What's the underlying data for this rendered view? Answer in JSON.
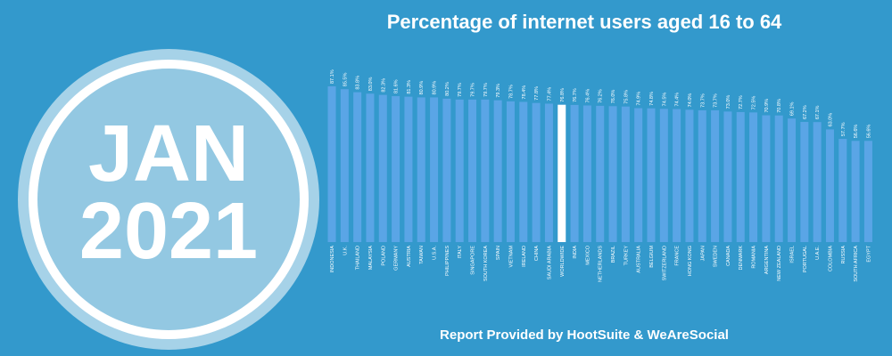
{
  "badge": {
    "month": "JAN",
    "year": "2021"
  },
  "footer": {
    "text": "Report Provided by HootSuite & WeAreSocial"
  },
  "colors": {
    "background": "#3399cc",
    "bar": "#5aa5e6",
    "highlight": "#ffffff"
  },
  "chart_data": {
    "type": "bar",
    "title": "Percentage of internet users aged 16 to 64",
    "xlabel": "",
    "ylabel": "",
    "ylim": [
      0,
      100
    ],
    "grid": false,
    "highlight_category": "WORLDWIDE",
    "categories": [
      "INDONESIA",
      "U.K.",
      "THAILAND",
      "MALAYSIA",
      "POLAND",
      "GERMANY",
      "AUSTRIA",
      "TAIWAN",
      "U.S.A.",
      "PHILIPPINES",
      "ITALY",
      "SINGAPORE",
      "SOUTH KOREA",
      "SPAIN",
      "VIETNAM",
      "IRELAND",
      "CHINA",
      "SAUDI ARABIA",
      "WORLDWIDE",
      "INDIA",
      "MEXICO",
      "NETHERLANDS",
      "BRAZIL",
      "TURKEY",
      "AUSTRALIA",
      "BELGIUM",
      "SWITZERLAND",
      "FRANCE",
      "HONG KONG",
      "JAPAN",
      "SWEDEN",
      "CANADA",
      "DENMARK",
      "ROMANIA",
      "ARGENTINA",
      "NEW ZEALAND",
      "ISRAEL",
      "PORTUGAL",
      "U.A.E.",
      "COLOMBIA",
      "RUSSIA",
      "SOUTH AFRICA",
      "EGYPT"
    ],
    "values": [
      87.1,
      85.5,
      83.8,
      83.0,
      82.3,
      81.6,
      81.3,
      80.9,
      80.9,
      80.2,
      79.7,
      79.7,
      79.7,
      79.3,
      78.7,
      78.4,
      77.8,
      77.4,
      76.8,
      76.7,
      76.4,
      76.2,
      76.0,
      75.8,
      74.9,
      74.8,
      74.5,
      74.4,
      74.0,
      73.7,
      73.7,
      73.0,
      72.7,
      72.5,
      70.9,
      70.8,
      69.1,
      67.2,
      67.1,
      63.0,
      57.7,
      56.6,
      56.6
    ],
    "value_labels": [
      "87.1%",
      "85.5%",
      "83.8%",
      "83.0%",
      "82.3%",
      "81.6%",
      "81.3%",
      "80.9%",
      "80.9%",
      "80.2%",
      "79.7%",
      "79.7%",
      "79.7%",
      "79.3%",
      "78.7%",
      "78.4%",
      "77.8%",
      "77.4%",
      "76.8%",
      "76.7%",
      "76.4%",
      "76.2%",
      "76.0%",
      "75.8%",
      "74.9%",
      "74.8%",
      "74.5%",
      "74.4%",
      "74.0%",
      "73.7%",
      "73.7%",
      "73.0%",
      "72.7%",
      "72.5%",
      "70.9%",
      "70.8%",
      "69.1%",
      "67.2%",
      "67.1%",
      "63.0%",
      "57.7%",
      "56.6%",
      "56.6%"
    ]
  }
}
